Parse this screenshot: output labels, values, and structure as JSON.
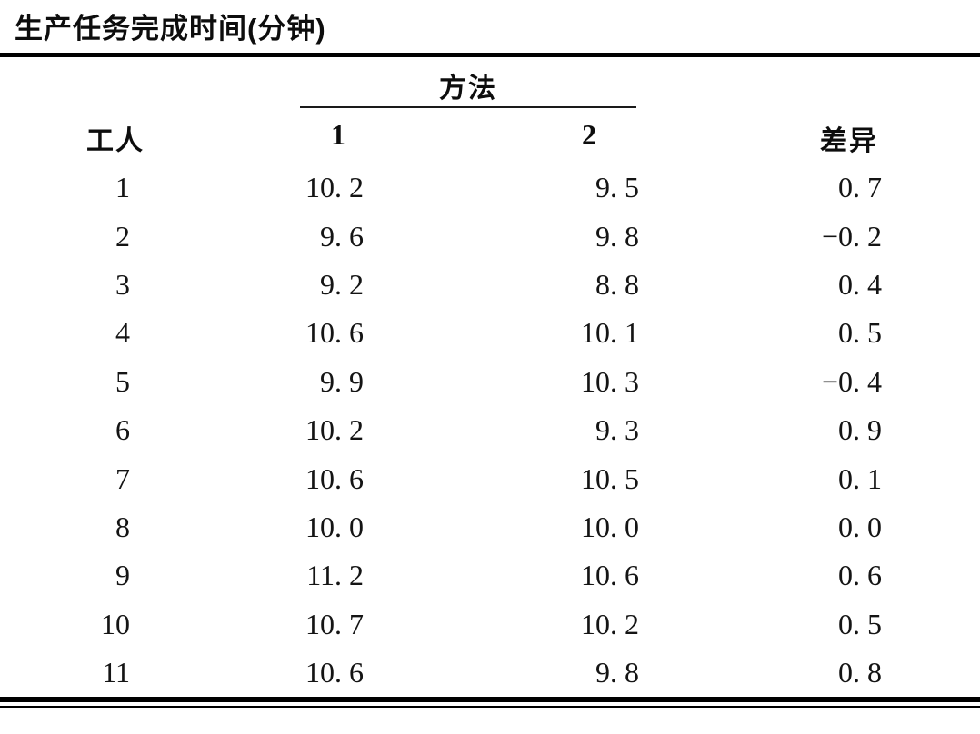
{
  "title": "生产任务完成时间(分钟)",
  "table": {
    "group_header": "方法",
    "col_worker": "工人",
    "col_method1": "1",
    "col_method2": "2",
    "col_diff": "差异",
    "rows": [
      {
        "worker": "1",
        "method1": "10. 2",
        "method2": "9. 5",
        "diff": "0. 7"
      },
      {
        "worker": "2",
        "method1": "9. 6",
        "method2": "9. 8",
        "diff": "−0. 2"
      },
      {
        "worker": "3",
        "method1": "9. 2",
        "method2": "8. 8",
        "diff": "0. 4"
      },
      {
        "worker": "4",
        "method1": "10. 6",
        "method2": "10. 1",
        "diff": "0. 5"
      },
      {
        "worker": "5",
        "method1": "9. 9",
        "method2": "10. 3",
        "diff": "−0. 4"
      },
      {
        "worker": "6",
        "method1": "10. 2",
        "method2": "9. 3",
        "diff": "0. 9"
      },
      {
        "worker": "7",
        "method1": "10. 6",
        "method2": "10. 5",
        "diff": "0. 1"
      },
      {
        "worker": "8",
        "method1": "10. 0",
        "method2": "10. 0",
        "diff": "0. 0"
      },
      {
        "worker": "9",
        "method1": "11. 2",
        "method2": "10. 6",
        "diff": "0. 6"
      },
      {
        "worker": "10",
        "method1": "10. 7",
        "method2": "10. 2",
        "diff": "0. 5"
      },
      {
        "worker": "11",
        "method1": "10. 6",
        "method2": "9. 8",
        "diff": "0. 8"
      }
    ]
  },
  "chart_data": {
    "type": "table",
    "title": "生产任务完成时间(分钟)",
    "columns": [
      "工人",
      "方法 1",
      "方法 2",
      "差异"
    ],
    "rows": [
      [
        1,
        10.2,
        9.5,
        0.7
      ],
      [
        2,
        9.6,
        9.8,
        -0.2
      ],
      [
        3,
        9.2,
        8.8,
        0.4
      ],
      [
        4,
        10.6,
        10.1,
        0.5
      ],
      [
        5,
        9.9,
        10.3,
        -0.4
      ],
      [
        6,
        10.2,
        9.3,
        0.9
      ],
      [
        7,
        10.6,
        10.5,
        0.1
      ],
      [
        8,
        10.0,
        10.0,
        0.0
      ],
      [
        9,
        11.2,
        10.6,
        0.6
      ],
      [
        10,
        10.7,
        10.2,
        0.5
      ],
      [
        11,
        10.6,
        9.8,
        0.8
      ]
    ]
  },
  "colors": {
    "background": "#ffffff",
    "text": "#111111",
    "rule": "#000000"
  }
}
